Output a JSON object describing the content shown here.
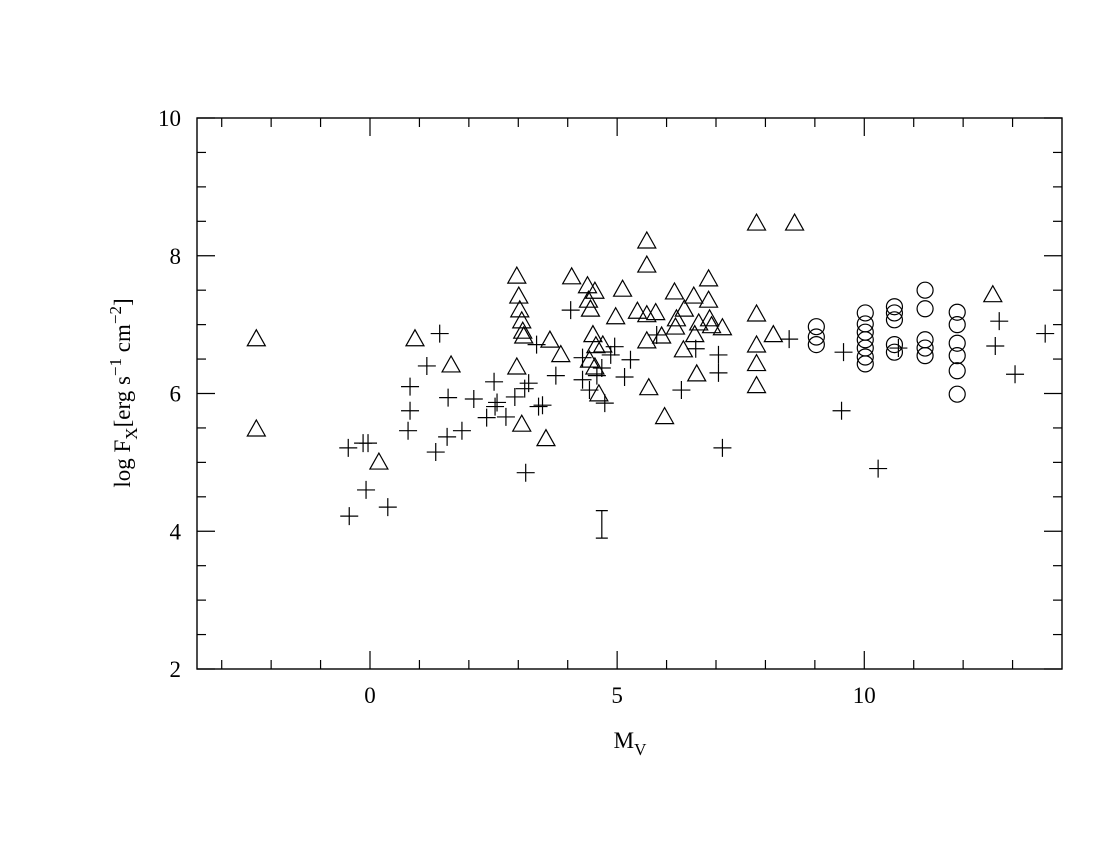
{
  "chart_data": {
    "type": "scatter",
    "xlabel": [
      "M",
      "V"
    ],
    "ylabel": [
      "log F",
      "X",
      "[erg s",
      "−1",
      " cm",
      "−2",
      "]"
    ],
    "xlim": [
      -3.5,
      14
    ],
    "ylim": [
      2,
      10
    ],
    "xticks": [
      0,
      5,
      10
    ],
    "yticks": [
      2,
      4,
      6,
      8,
      10
    ],
    "xminorticks": [
      -3,
      -2,
      -1,
      1,
      2,
      3,
      4,
      6,
      7,
      8,
      9,
      11,
      12,
      13
    ],
    "yminorticks": [
      2.5,
      3,
      3.5,
      4.5,
      5,
      5.5,
      6.5,
      7,
      7.5,
      8.5,
      9,
      9.5
    ],
    "color": "#000000",
    "series": [
      {
        "marker": "triangle",
        "x": [
          -2.3,
          -2.3,
          0.18,
          0.91,
          1.64,
          2.97,
          3.01,
          3.03,
          3.07,
          3.09,
          3.11,
          2.97,
          3.07,
          3.64,
          3.56,
          3.86,
          4.08,
          4.4,
          4.42,
          4.46,
          4.55,
          4.51,
          4.57,
          4.44,
          4.55,
          4.63,
          4.71,
          4.97,
          5.11,
          5.41,
          5.6,
          5.6,
          5.6,
          5.6,
          5.64,
          5.78,
          5.96,
          5.9,
          6.16,
          6.2,
          6.18,
          6.34,
          6.36,
          6.55,
          6.57,
          6.65,
          6.61,
          6.85,
          6.85,
          6.87,
          6.91,
          7.13,
          7.82,
          7.82,
          7.82,
          7.82,
          7.82,
          8.16,
          8.59,
          12.6
        ],
        "values": [
          6.78,
          5.47,
          4.99,
          6.78,
          6.4,
          7.69,
          7.4,
          7.2,
          7.04,
          6.89,
          6.82,
          6.37,
          5.54,
          6.76,
          5.33,
          6.55,
          7.68,
          7.55,
          7.34,
          7.21,
          7.47,
          6.84,
          6.68,
          6.47,
          6.37,
          5.98,
          6.69,
          7.1,
          7.5,
          7.18,
          8.2,
          7.85,
          7.13,
          6.75,
          6.07,
          7.16,
          5.65,
          6.82,
          7.46,
          7.07,
          6.95,
          6.62,
          7.21,
          7.4,
          6.84,
          7.01,
          6.27,
          7.65,
          7.34,
          7.07,
          6.97,
          6.94,
          8.46,
          7.14,
          6.69,
          6.42,
          6.1,
          6.84,
          8.46,
          7.42
        ]
      },
      {
        "marker": "plus",
        "x": [
          -0.44,
          -0.14,
          -0.04,
          -0.42,
          -0.08,
          0.36,
          0.77,
          0.81,
          0.81,
          1.15,
          1.41,
          1.33,
          1.56,
          1.58,
          1.86,
          2.1,
          2.36,
          2.51,
          2.53,
          2.57,
          2.75,
          2.93,
          3.13,
          3.15,
          3.21,
          3.41,
          3.49,
          3.37,
          3.76,
          4.06,
          4.3,
          4.3,
          4.44,
          4.59,
          4.75,
          4.69,
          4.87,
          4.95,
          5.15,
          5.27,
          5.8,
          6.3,
          6.59,
          7.05,
          7.05,
          7.13,
          8.48,
          9.58,
          9.54,
          10.28,
          10.69,
          12.73,
          12.65,
          13.05,
          13.66
        ],
        "values": [
          5.21,
          5.28,
          5.28,
          4.22,
          4.6,
          4.35,
          5.46,
          5.75,
          6.1,
          6.4,
          6.87,
          5.15,
          5.37,
          5.94,
          5.46,
          5.92,
          5.65,
          6.17,
          5.81,
          5.87,
          5.66,
          5.95,
          6.07,
          4.85,
          6.15,
          5.81,
          5.83,
          6.71,
          6.26,
          7.21,
          6.2,
          6.52,
          6.05,
          6.26,
          5.86,
          6.37,
          6.56,
          6.68,
          6.24,
          6.49,
          6.85,
          6.05,
          6.65,
          6.56,
          6.3,
          5.21,
          6.79,
          6.6,
          5.75,
          4.91,
          6.66,
          7.05,
          6.69,
          6.28,
          6.87
        ]
      },
      {
        "marker": "circle",
        "x": [
          9.03,
          9.03,
          9.03,
          10.02,
          10.02,
          10.02,
          10.02,
          10.02,
          10.02,
          10.02,
          10.61,
          10.61,
          10.61,
          10.61,
          10.61,
          11.23,
          11.23,
          11.23,
          11.23,
          11.23,
          11.88,
          11.88,
          11.88,
          11.88,
          11.88,
          11.88
        ],
        "values": [
          6.97,
          6.82,
          6.71,
          7.17,
          7.01,
          6.89,
          6.78,
          6.66,
          6.53,
          6.43,
          7.26,
          7.17,
          7.07,
          6.71,
          6.6,
          7.5,
          7.23,
          6.78,
          6.66,
          6.55,
          7.18,
          7.0,
          6.73,
          6.55,
          6.33,
          5.99
        ]
      }
    ],
    "error_bar": {
      "x": 4.69,
      "y": 4.1,
      "error": 0.2
    }
  }
}
